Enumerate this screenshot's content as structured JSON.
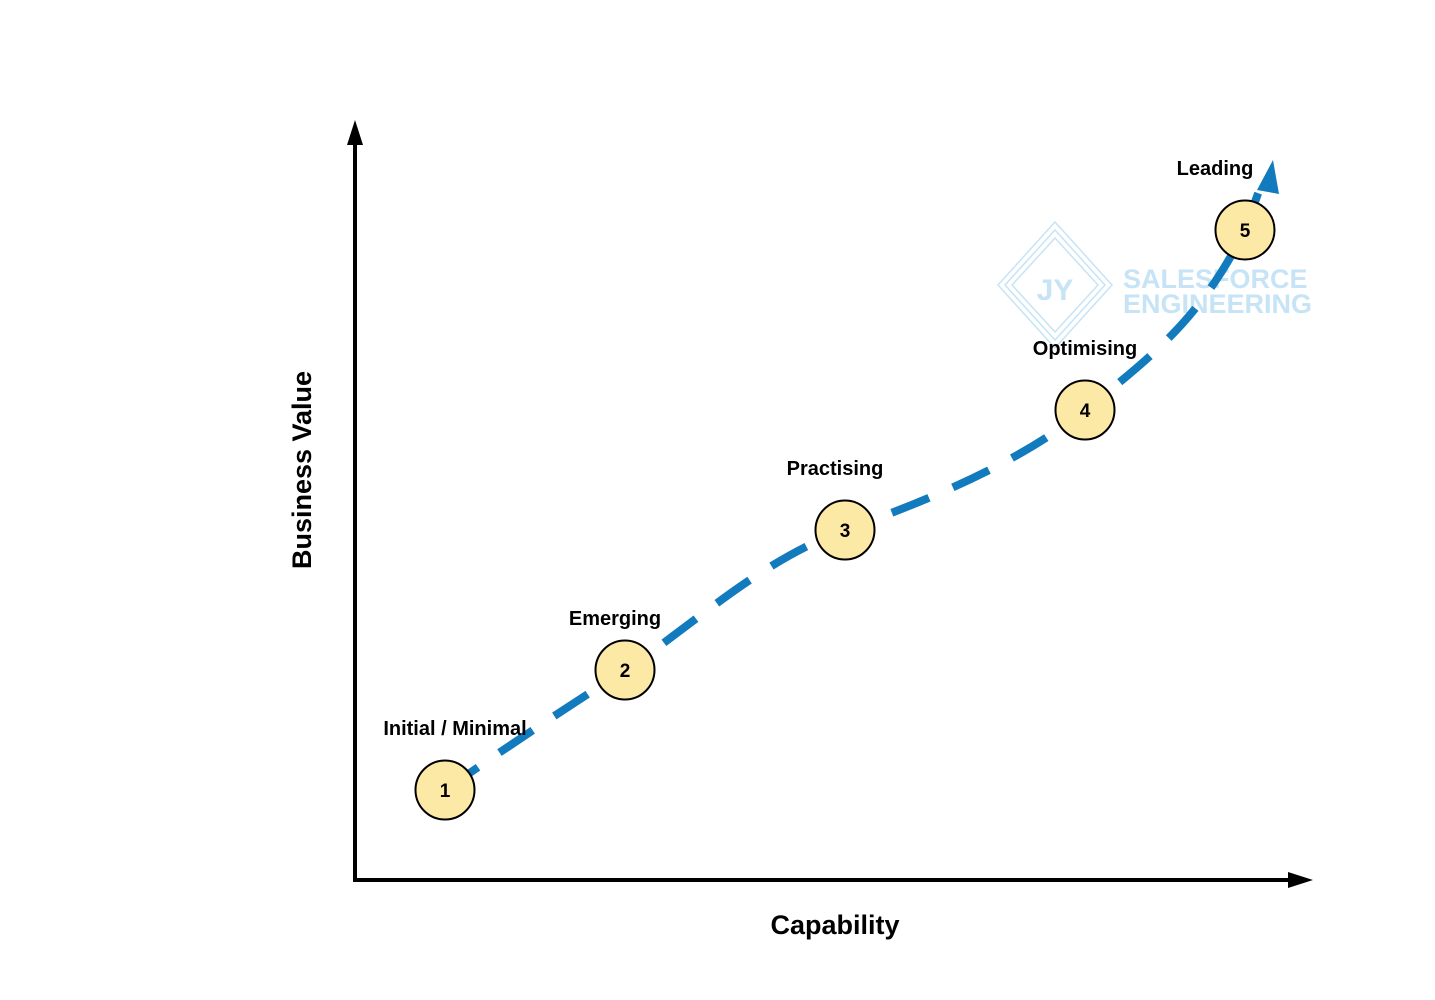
{
  "axes": {
    "x_label": "Capability",
    "y_label": "Business Value"
  },
  "stages": [
    {
      "number": "1",
      "label": "Initial / Minimal"
    },
    {
      "number": "2",
      "label": "Emerging"
    },
    {
      "number": "3",
      "label": "Practising"
    },
    {
      "number": "4",
      "label": "Optimising"
    },
    {
      "number": "5",
      "label": "Leading"
    }
  ],
  "watermark": {
    "monogram": "JY",
    "line1": "SALESFORCE",
    "line2": "ENGINEERING"
  },
  "colors": {
    "curve": "#127bbd",
    "node_fill": "#fde9a6",
    "watermark": "#c6e4f6"
  }
}
